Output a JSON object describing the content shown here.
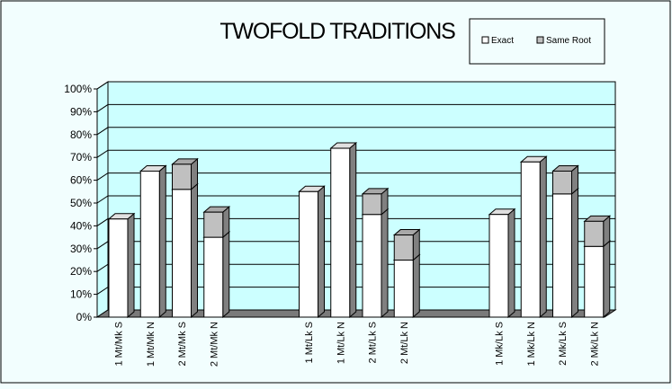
{
  "colors": {
    "background": "#f2fefe",
    "plot_back": "#ccffff",
    "plot_floor": "#7a7a7a",
    "exact": "#ffffff",
    "same_root": "#c0c0c0",
    "outline": "#000000"
  },
  "chart_data": {
    "type": "bar",
    "stacked": true,
    "three_d": true,
    "title": "TWOFOLD TRADITIONS",
    "categories": [
      "1 Mt/Mk S",
      "1 Mt/Mk N",
      "2 Mt/Mk S",
      "2 Mt/Mk N",
      "",
      "",
      "1 Mt/Lk S",
      "1 Mt/Lk N",
      "2 Mt/Lk S",
      "2 Mt/Lk N",
      "",
      "",
      "1 Mk/Lk S",
      "1 Mk/Lk N",
      "2 Mk/Lk S",
      "2 Mk/Lk N"
    ],
    "series": [
      {
        "name": "Exact",
        "values": [
          43,
          64,
          56,
          35,
          null,
          null,
          55,
          74,
          45,
          25,
          null,
          null,
          45,
          68,
          54,
          31
        ]
      },
      {
        "name": "Same Root",
        "values": [
          0,
          0,
          11,
          11,
          null,
          null,
          0,
          0,
          9,
          11,
          null,
          null,
          0,
          0,
          10,
          11
        ]
      }
    ],
    "ylim": [
      0,
      100
    ],
    "y_ticks": [
      "0%",
      "10%",
      "20%",
      "30%",
      "40%",
      "50%",
      "60%",
      "70%",
      "80%",
      "90%",
      "100%"
    ],
    "grid": true,
    "legend": "top-right"
  }
}
